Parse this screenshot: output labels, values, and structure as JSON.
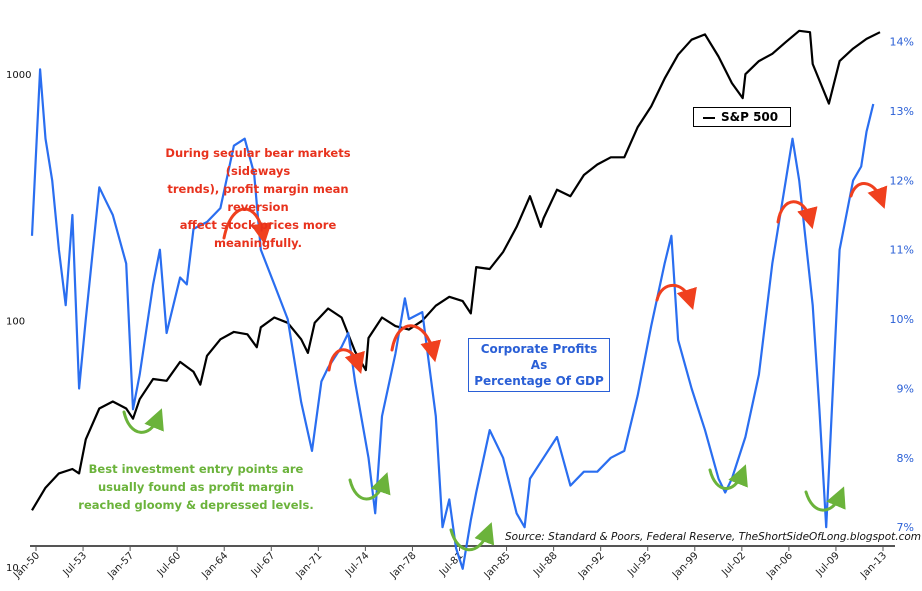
{
  "notes": {
    "bear_market": [
      "During secular bear markets (sideways",
      "trends), profit margin mean reversion",
      "affect stock prices more meaningfully."
    ],
    "entry_points": [
      "Best investment entry points are",
      "usually found as profit margin",
      "reached gloomy & depressed levels."
    ],
    "profits_box": [
      "Corporate Profits As",
      "Percentage Of GDP"
    ],
    "source": "Source: Standard & Poors, Federal Reserve, TheShortSideOfLong.blogspot.com"
  },
  "colors": {
    "sp500": "#000000",
    "profits": "#2a6ef0",
    "red_arrow": "#f0401e",
    "green_arrow": "#6bb33b",
    "axis": "#555555"
  },
  "chart_data": {
    "type": "line",
    "legend": {
      "entries": [
        "S&P 500"
      ],
      "placement": "top-right"
    },
    "x_ticks": [
      "Jan-50",
      "Jul-53",
      "Jan-57",
      "Jul-60",
      "Jan-64",
      "Jul-67",
      "Jan-71",
      "Jul-74",
      "Jan-78",
      "Jul-81",
      "Jan-85",
      "Jul-88",
      "Jan-92",
      "Jul-95",
      "Jan-99",
      "Jul-02",
      "Jan-06",
      "Jul-09",
      "Jan-13"
    ],
    "xlim": [
      1950,
      2013
    ],
    "y_left": {
      "scale": "log",
      "ticks": [
        "10",
        "100",
        "1000"
      ],
      "ylim": [
        8,
        2000
      ]
    },
    "y_right": {
      "ticks": [
        "7%",
        "8%",
        "9%",
        "10%",
        "11%",
        "12%",
        "13%",
        "14%"
      ],
      "ylim": [
        6.08,
        14.6
      ]
    },
    "series": [
      {
        "name": "S&P 500",
        "axis": "left",
        "x": [
          1950,
          1951,
          1952,
          1953,
          1953.5,
          1954,
          1955,
          1956,
          1957,
          1957.5,
          1958,
          1959,
          1960,
          1961,
          1962,
          1962.5,
          1963,
          1964,
          1965,
          1966,
          1966.7,
          1967,
          1968,
          1969,
          1970,
          1970.5,
          1971,
          1972,
          1973,
          1974,
          1974.8,
          1975,
          1976,
          1977,
          1978,
          1979,
          1980,
          1981,
          1982,
          1982.6,
          1983,
          1984,
          1985,
          1986,
          1987,
          1987.8,
          1988,
          1989,
          1990,
          1991,
          1992,
          1993,
          1994,
          1995,
          1996,
          1997,
          1998,
          1999,
          2000,
          2001,
          2002,
          2002.8,
          2003,
          2004,
          2005,
          2006,
          2007,
          2007.8,
          2008,
          2009.2,
          2010,
          2011,
          2012,
          2013
        ],
        "y": [
          17,
          21,
          24,
          25,
          24,
          33,
          44,
          47,
          44,
          40,
          48,
          58,
          57,
          68,
          62,
          55,
          72,
          84,
          90,
          88,
          78,
          94,
          103,
          98,
          84,
          74,
          98,
          112,
          103,
          75,
          63,
          85,
          103,
          95,
          92,
          100,
          115,
          125,
          120,
          107,
          165,
          162,
          190,
          240,
          320,
          240,
          260,
          340,
          320,
          390,
          430,
          460,
          460,
          610,
          740,
          960,
          1200,
          1380,
          1450,
          1180,
          920,
          800,
          1000,
          1130,
          1210,
          1350,
          1500,
          1480,
          1100,
          760,
          1130,
          1270,
          1390,
          1480
        ]
      },
      {
        "name": "Corporate Profits As Percentage Of GDP",
        "axis": "right",
        "x": [
          1950,
          1950.6,
          1951,
          1951.5,
          1952,
          1952.5,
          1953,
          1953.5,
          1954,
          1955,
          1955.5,
          1956,
          1957,
          1957.5,
          1958,
          1959,
          1959.5,
          1960,
          1961,
          1961.5,
          1962,
          1963,
          1964,
          1965,
          1965.8,
          1966.5,
          1967,
          1968,
          1969,
          1970,
          1970.8,
          1971.5,
          1972,
          1973,
          1973.5,
          1974,
          1975,
          1975.5,
          1976,
          1977,
          1977.7,
          1978,
          1979,
          1980,
          1980.5,
          1981,
          1981.5,
          1982,
          1982.6,
          1983,
          1984,
          1985,
          1986,
          1986.6,
          1987,
          1988,
          1989,
          1990,
          1991,
          1992,
          1993,
          1994,
          1995,
          1996,
          1997,
          1997.5,
          1998,
          1999,
          2000,
          2001,
          2001.5,
          2002,
          2003,
          2004,
          2005,
          2006,
          2006.5,
          2007,
          2008,
          2008.5,
          2009,
          2010,
          2011,
          2011.6,
          2012,
          2012.5
        ],
        "y": [
          11.2,
          13.6,
          12.6,
          12.0,
          11.0,
          10.2,
          11.5,
          9.0,
          10.0,
          11.9,
          11.7,
          11.5,
          10.8,
          8.7,
          9.2,
          10.5,
          11.0,
          9.8,
          10.6,
          10.5,
          11.3,
          11.4,
          11.6,
          12.5,
          12.6,
          12.1,
          11.0,
          10.5,
          10.0,
          8.8,
          8.1,
          9.1,
          9.3,
          9.6,
          9.8,
          9.1,
          8.0,
          7.2,
          8.6,
          9.5,
          10.3,
          10.0,
          10.1,
          8.6,
          7.0,
          7.4,
          6.7,
          6.4,
          7.1,
          7.5,
          8.4,
          8.0,
          7.2,
          7.0,
          7.7,
          8.0,
          8.3,
          7.6,
          7.8,
          7.8,
          8.0,
          8.1,
          8.9,
          9.9,
          10.8,
          11.2,
          9.7,
          9.0,
          8.4,
          7.7,
          7.5,
          7.7,
          8.3,
          9.2,
          10.8,
          12.0,
          12.6,
          12.0,
          10.2,
          8.7,
          7.0,
          11.0,
          12.0,
          12.2,
          12.7,
          13.1
        ]
      }
    ]
  }
}
